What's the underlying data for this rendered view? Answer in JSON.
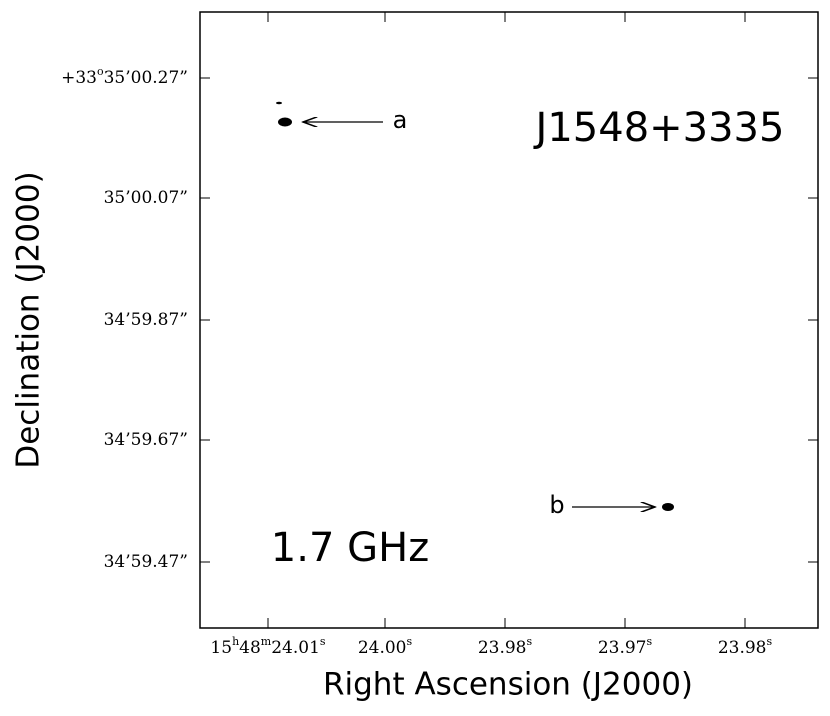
{
  "plot": {
    "source": "J1548+3335",
    "frequency": "1.7 GHz",
    "x_label": "Right Ascension (J2000)",
    "y_label": "Declination (J2000)",
    "x_ticks": [
      [
        "15",
        "h",
        "48",
        "m",
        "24.01",
        "s"
      ],
      [
        "24.00",
        "s"
      ],
      [
        "23.98",
        "s"
      ],
      [
        "23.97",
        "s"
      ],
      [
        "23.98",
        "s"
      ]
    ],
    "y_ticks": [
      [
        "+33",
        "o",
        "35’00.27”"
      ],
      [
        "35’00.07”"
      ],
      [
        "34’59.87”"
      ],
      [
        "34’59.67”"
      ],
      [
        "34’59.47”"
      ]
    ],
    "components": [
      {
        "label": "a"
      },
      {
        "label": "b"
      }
    ]
  }
}
